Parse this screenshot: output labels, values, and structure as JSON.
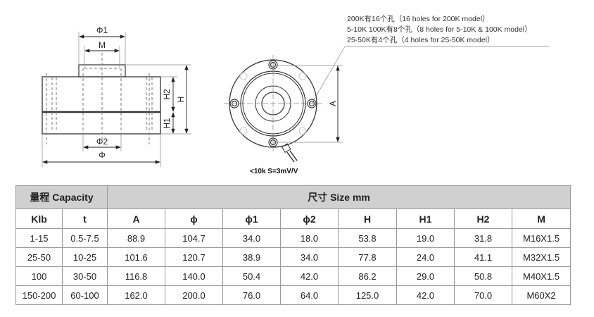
{
  "drawing": {
    "side_labels": {
      "phi1": "Φ1",
      "m": "M",
      "phi2": "Φ2",
      "phi": "Φ",
      "h2": "H2",
      "h1": "H1",
      "h": "H"
    },
    "top_labels": {
      "a": "A"
    },
    "notes": [
      "200K有16个孔（16 holes for 200K model）",
      "5-10K 100K有8个孔（8 holes for 5-10K & 100K model）",
      "25-50K有4个孔（4 holes for 25-50K model）"
    ],
    "caption": "<10k  S=3mV/V"
  },
  "table": {
    "group_headers": {
      "capacity": "量程 Capacity",
      "size": "尺寸 Size mm"
    },
    "columns": [
      "Klb",
      "t",
      "A",
      "ϕ",
      "ϕ1",
      "ϕ2",
      "H",
      "H1",
      "H2",
      "M"
    ],
    "rows": [
      [
        "1-15",
        "0.5-7.5",
        "88.9",
        "104.7",
        "34.0",
        "18.0",
        "53.8",
        "19.0",
        "31.8",
        "M16X1.5"
      ],
      [
        "25-50",
        "10-25",
        "101.6",
        "120.7",
        "38.9",
        "34.0",
        "77.8",
        "24.0",
        "41.1",
        "M32X1.5"
      ],
      [
        "100",
        "30-50",
        "116.8",
        "140.0",
        "50.4",
        "42.0",
        "86.2",
        "29.0",
        "50.8",
        "M40X1.5"
      ],
      [
        "150-200",
        "60-100",
        "162.0",
        "200.0",
        "76.0",
        "64.0",
        "125.0",
        "42.0",
        "70.0",
        "M60X2"
      ]
    ]
  }
}
